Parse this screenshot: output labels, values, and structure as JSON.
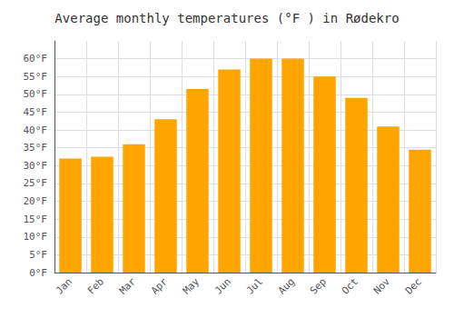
{
  "chart_data": {
    "type": "bar",
    "title": "Average monthly temperatures (°F ) in Rødekro",
    "categories": [
      "Jan",
      "Feb",
      "Mar",
      "Apr",
      "May",
      "Jun",
      "Jul",
      "Aug",
      "Sep",
      "Oct",
      "Nov",
      "Dec"
    ],
    "values": [
      32,
      32.5,
      36,
      43,
      51.5,
      57,
      60,
      60,
      55,
      49,
      41,
      34.5
    ],
    "color": "#FFA500",
    "ylim": [
      0,
      65
    ],
    "yticks": [
      {
        "value": 0,
        "label": "0°F"
      },
      {
        "value": 5,
        "label": "5°F"
      },
      {
        "value": 10,
        "label": "10°F"
      },
      {
        "value": 15,
        "label": "15°F"
      },
      {
        "value": 20,
        "label": "20°F"
      },
      {
        "value": 25,
        "label": "25°F"
      },
      {
        "value": 30,
        "label": "30°F"
      },
      {
        "value": 35,
        "label": "35°F"
      },
      {
        "value": 40,
        "label": "40°F"
      },
      {
        "value": 45,
        "label": "45°F"
      },
      {
        "value": 50,
        "label": "50°F"
      },
      {
        "value": 55,
        "label": "55°F"
      },
      {
        "value": 60,
        "label": "60°F"
      }
    ],
    "grid": true
  }
}
